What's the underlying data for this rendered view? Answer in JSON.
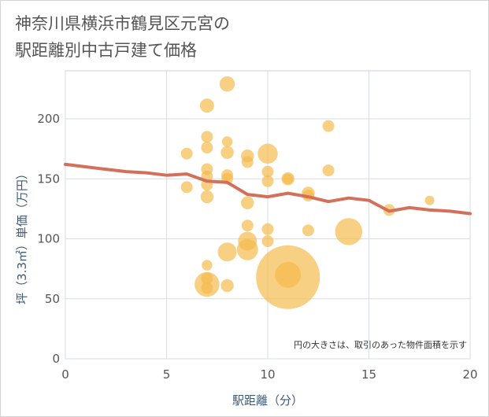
{
  "title_line1": "神奈川県横浜市鶴見区元宮の",
  "title_line2": "駅距離別中古戸建て価格",
  "chart_data": {
    "type": "scatter",
    "xlabel": "駅距離（分）",
    "ylabel": "坪（3.3㎡）単価（万円）",
    "xlim": [
      0,
      20
    ],
    "ylim": [
      0,
      240
    ],
    "x_ticks": [
      "0",
      "5",
      "10",
      "15",
      "20"
    ],
    "y_ticks": [
      "0",
      "50",
      "100",
      "150",
      "200"
    ],
    "grid": true,
    "annotation": "円の大きさは、取引のあった物件面積を示す",
    "point_color": "#f5b94a",
    "line_color": "#d2705c",
    "points": [
      {
        "x": 6,
        "y": 171,
        "s": 1
      },
      {
        "x": 6,
        "y": 143,
        "s": 1
      },
      {
        "x": 7,
        "y": 211,
        "s": 1.2
      },
      {
        "x": 7,
        "y": 185,
        "s": 1
      },
      {
        "x": 7,
        "y": 176,
        "s": 1
      },
      {
        "x": 7,
        "y": 158,
        "s": 1
      },
      {
        "x": 7,
        "y": 152,
        "s": 1
      },
      {
        "x": 7,
        "y": 145,
        "s": 1
      },
      {
        "x": 7,
        "y": 135,
        "s": 1.1
      },
      {
        "x": 7,
        "y": 78,
        "s": 0.9
      },
      {
        "x": 7,
        "y": 67,
        "s": 1
      },
      {
        "x": 7,
        "y": 62,
        "s": 2.1
      },
      {
        "x": 7,
        "y": 59,
        "s": 1
      },
      {
        "x": 8,
        "y": 229,
        "s": 1.3
      },
      {
        "x": 8,
        "y": 181,
        "s": 0.9
      },
      {
        "x": 8,
        "y": 172,
        "s": 1.1
      },
      {
        "x": 8,
        "y": 153,
        "s": 1
      },
      {
        "x": 8,
        "y": 150,
        "s": 1
      },
      {
        "x": 8,
        "y": 89,
        "s": 1.6
      },
      {
        "x": 8,
        "y": 61,
        "s": 1.1
      },
      {
        "x": 9,
        "y": 169,
        "s": 1.1
      },
      {
        "x": 9,
        "y": 164,
        "s": 1
      },
      {
        "x": 9,
        "y": 130,
        "s": 1.1
      },
      {
        "x": 9,
        "y": 111,
        "s": 1
      },
      {
        "x": 9,
        "y": 98,
        "s": 1.6
      },
      {
        "x": 9,
        "y": 91,
        "s": 1.8
      },
      {
        "x": 10,
        "y": 171,
        "s": 1.7
      },
      {
        "x": 10,
        "y": 156,
        "s": 1
      },
      {
        "x": 10,
        "y": 148,
        "s": 1
      },
      {
        "x": 10,
        "y": 108,
        "s": 1
      },
      {
        "x": 10,
        "y": 98,
        "s": 1
      },
      {
        "x": 11,
        "y": 150,
        "s": 1.1
      },
      {
        "x": 11,
        "y": 150,
        "s": 0.9
      },
      {
        "x": 11,
        "y": 70,
        "s": 2.2
      },
      {
        "x": 11,
        "y": 68,
        "s": 5.4
      },
      {
        "x": 12,
        "y": 138,
        "s": 1.1
      },
      {
        "x": 12,
        "y": 136,
        "s": 1
      },
      {
        "x": 12,
        "y": 107,
        "s": 1
      },
      {
        "x": 13,
        "y": 194,
        "s": 1
      },
      {
        "x": 13,
        "y": 157,
        "s": 1
      },
      {
        "x": 14,
        "y": 106,
        "s": 2.3
      },
      {
        "x": 16,
        "y": 124,
        "s": 1
      },
      {
        "x": 18,
        "y": 132,
        "s": 0.8
      }
    ],
    "trend_line": {
      "x": [
        0,
        1,
        2,
        3,
        4,
        5,
        6,
        7,
        8,
        9,
        10,
        11,
        12,
        13,
        14,
        15,
        16,
        17,
        18,
        19,
        20
      ],
      "y": [
        162,
        160,
        158,
        156,
        155,
        153,
        154,
        148,
        147,
        137,
        135,
        138,
        135,
        131,
        134,
        132,
        123,
        126,
        124,
        123,
        121
      ]
    }
  }
}
